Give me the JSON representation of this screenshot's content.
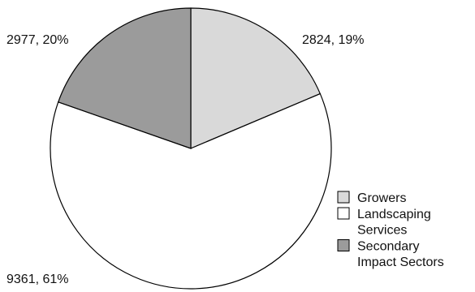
{
  "chart_data": {
    "type": "pie",
    "slices": [
      {
        "label": "Growers",
        "value": 2824,
        "percent": 19,
        "data_label": "2824, 19%",
        "color": "#d9d9d9"
      },
      {
        "label": "Landscaping Services",
        "value": 9361,
        "percent": 61,
        "data_label": "9361, 61%",
        "color": "#ffffff"
      },
      {
        "label": "Secondary Impact Sectors",
        "value": 2977,
        "percent": 20,
        "data_label": "2977, 20%",
        "color": "#9b9b9b"
      }
    ],
    "legend": {
      "placement": "bottom-right",
      "entries": [
        {
          "lines": [
            "Growers"
          ],
          "color": "#d9d9d9"
        },
        {
          "lines": [
            "Landscaping",
            "Services"
          ],
          "color": "#ffffff"
        },
        {
          "lines": [
            "Secondary",
            "Impact Sectors"
          ],
          "color": "#9b9b9b"
        }
      ]
    },
    "start_angle": "12 o'clock",
    "direction": "clockwise",
    "outline_color": "#000000"
  }
}
